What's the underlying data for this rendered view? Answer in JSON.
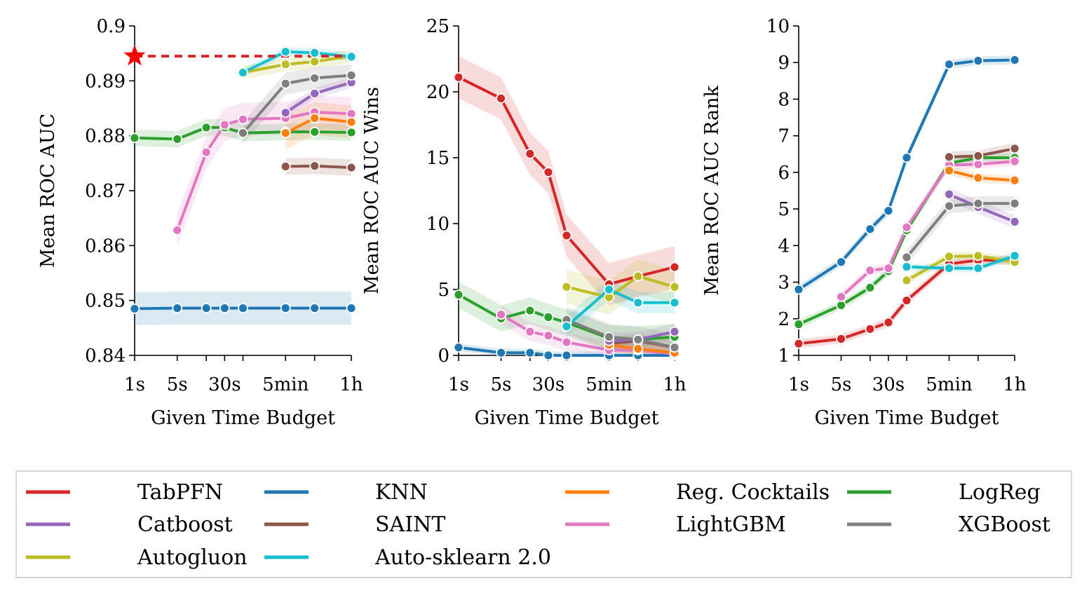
{
  "legend": {
    "entries": [
      {
        "label": "TabPFN",
        "color": "#d62728"
      },
      {
        "label": "KNN",
        "color": "#1f77b4"
      },
      {
        "label": "Reg. Cocktails",
        "color": "#ff7f0e"
      },
      {
        "label": "LogReg",
        "color": "#2ca02c"
      },
      {
        "label": "Catboost",
        "color": "#9467bd"
      },
      {
        "label": "SAINT",
        "color": "#8c564b"
      },
      {
        "label": "LightGBM",
        "color": "#e377c2"
      },
      {
        "label": "XGBoost",
        "color": "#7f7f7f"
      },
      {
        "label": "Autogluon",
        "color": "#bcbd22"
      },
      {
        "label": "Auto-sklearn 2.0",
        "color": "#17becf"
      }
    ]
  },
  "chart_data": [
    {
      "type": "line",
      "xlabel": "Given Time Budget",
      "ylabel": "Mean ROC AUC",
      "x_ticks": [
        "1s",
        "5s",
        "30s",
        "5min",
        "1h"
      ],
      "ylim": [
        0.84,
        0.9
      ],
      "y_ticks": [
        "0.84",
        "0.85",
        "0.86",
        "0.87",
        "0.88",
        "0.89",
        "0.9"
      ],
      "reference": {
        "series": "TabPFN",
        "x": "1s",
        "y": 0.8945,
        "marker": "star"
      },
      "series": [
        {
          "name": "KNN",
          "color": "#1f77b4",
          "band": 0.003,
          "points": [
            [
              "1s",
              0.8485
            ],
            [
              "5s",
              0.8486
            ],
            [
              "15s",
              0.8486
            ],
            [
              "30s",
              0.8486
            ],
            [
              "1min",
              0.8486
            ],
            [
              "5min",
              0.8486
            ],
            [
              "15min",
              0.8486
            ],
            [
              "1h",
              0.8486
            ]
          ]
        },
        {
          "name": "LogReg",
          "color": "#2ca02c",
          "band": 0.0015,
          "points": [
            [
              "1s",
              0.8796
            ],
            [
              "5s",
              0.8794
            ],
            [
              "15s",
              0.8815
            ],
            [
              "30s",
              0.8815
            ],
            [
              "1min",
              0.8805
            ],
            [
              "5min",
              0.8807
            ],
            [
              "15min",
              0.8807
            ],
            [
              "1h",
              0.8806
            ]
          ]
        },
        {
          "name": "LightGBM",
          "color": "#e377c2",
          "band": 0.003,
          "points": [
            [
              "5s",
              0.8628
            ],
            [
              "15s",
              0.877
            ],
            [
              "30s",
              0.882
            ],
            [
              "1min",
              0.883
            ],
            [
              "5min",
              0.8832
            ],
            [
              "15min",
              0.8843
            ],
            [
              "1h",
              0.884
            ]
          ]
        },
        {
          "name": "SAINT",
          "color": "#8c564b",
          "band": 0.0015,
          "points": [
            [
              "5min",
              0.8744
            ],
            [
              "15min",
              0.8745
            ],
            [
              "1h",
              0.8742
            ]
          ]
        },
        {
          "name": "Reg. Cocktails",
          "color": "#ff7f0e",
          "band": 0.003,
          "points": [
            [
              "5min",
              0.8805
            ],
            [
              "15min",
              0.8832
            ],
            [
              "1h",
              0.8825
            ]
          ]
        },
        {
          "name": "Catboost",
          "color": "#9467bd",
          "band": 0.001,
          "points": [
            [
              "5min",
              0.8842
            ],
            [
              "15min",
              0.8877
            ],
            [
              "1h",
              0.8897
            ]
          ]
        },
        {
          "name": "XGBoost",
          "color": "#7f7f7f",
          "band": 0.002,
          "points": [
            [
              "1min",
              0.8805
            ],
            [
              "5min",
              0.8895
            ],
            [
              "15min",
              0.8905
            ],
            [
              "1h",
              0.891
            ]
          ]
        },
        {
          "name": "Autogluon",
          "color": "#bcbd22",
          "band": 0.0012,
          "points": [
            [
              "1min",
              0.8915
            ],
            [
              "5min",
              0.893
            ],
            [
              "15min",
              0.8935
            ],
            [
              "1h",
              0.8945
            ]
          ]
        },
        {
          "name": "Auto-sklearn 2.0",
          "color": "#17becf",
          "band": 0.0008,
          "points": [
            [
              "1min",
              0.8915
            ],
            [
              "5min",
              0.8953
            ],
            [
              "15min",
              0.8951
            ],
            [
              "1h",
              0.8944
            ]
          ]
        }
      ]
    },
    {
      "type": "line",
      "xlabel": "Given Time Budget",
      "ylabel": "Mean ROC AUC Wins",
      "x_ticks": [
        "1s",
        "5s",
        "30s",
        "5min",
        "1h"
      ],
      "ylim": [
        0,
        25
      ],
      "y_ticks": [
        "0",
        "5",
        "10",
        "15",
        "20",
        "25"
      ],
      "series": [
        {
          "name": "TabPFN",
          "color": "#d62728",
          "band": 1.6,
          "points": [
            [
              "1s",
              21.1
            ],
            [
              "5s",
              19.5
            ],
            [
              "15s",
              15.3
            ],
            [
              "30s",
              13.9
            ],
            [
              "1min",
              9.1
            ],
            [
              "5min",
              5.4
            ],
            [
              "15min",
              6.0
            ],
            [
              "1h",
              6.7
            ]
          ]
        },
        {
          "name": "KNN",
          "color": "#1f77b4",
          "band": 0.3,
          "points": [
            [
              "1s",
              0.6
            ],
            [
              "5s",
              0.2
            ],
            [
              "15s",
              0.2
            ],
            [
              "30s",
              0.0
            ],
            [
              "1min",
              0.0
            ],
            [
              "5min",
              0.0
            ],
            [
              "15min",
              0.0
            ],
            [
              "1h",
              0.0
            ]
          ]
        },
        {
          "name": "LogReg",
          "color": "#2ca02c",
          "band": 1.0,
          "points": [
            [
              "1s",
              4.6
            ],
            [
              "5s",
              2.8
            ],
            [
              "15s",
              3.4
            ],
            [
              "30s",
              2.9
            ],
            [
              "1min",
              2.5
            ],
            [
              "5min",
              1.3
            ],
            [
              "15min",
              1.2
            ],
            [
              "1h",
              1.4
            ]
          ]
        },
        {
          "name": "LightGBM",
          "color": "#e377c2",
          "band": 0.7,
          "points": [
            [
              "5s",
              3.1
            ],
            [
              "15s",
              1.8
            ],
            [
              "30s",
              1.5
            ],
            [
              "1min",
              1.0
            ],
            [
              "5min",
              0.4
            ],
            [
              "15min",
              0.4
            ],
            [
              "1h",
              0.1
            ]
          ]
        },
        {
          "name": "SAINT",
          "color": "#8c564b",
          "band": 0.5,
          "points": [
            [
              "5min",
              0.9
            ],
            [
              "15min",
              1.1
            ],
            [
              "1h",
              0.6
            ]
          ]
        },
        {
          "name": "Reg. Cocktails",
          "color": "#ff7f0e",
          "band": 0.5,
          "points": [
            [
              "5min",
              0.8
            ],
            [
              "15min",
              0.5
            ],
            [
              "1h",
              0.2
            ]
          ]
        },
        {
          "name": "Catboost",
          "color": "#9467bd",
          "band": 0.6,
          "points": [
            [
              "5min",
              1.1
            ],
            [
              "15min",
              1.2
            ],
            [
              "1h",
              1.8
            ]
          ]
        },
        {
          "name": "XGBoost",
          "color": "#7f7f7f",
          "band": 1.0,
          "points": [
            [
              "1min",
              2.7
            ],
            [
              "5min",
              1.4
            ],
            [
              "15min",
              1.2
            ],
            [
              "1h",
              0.6
            ]
          ]
        },
        {
          "name": "Autogluon",
          "color": "#bcbd22",
          "band": 1.3,
          "points": [
            [
              "1min",
              5.2
            ],
            [
              "5min",
              4.4
            ],
            [
              "15min",
              6.0
            ],
            [
              "1h",
              5.2
            ]
          ]
        },
        {
          "name": "Auto-sklearn 2.0",
          "color": "#17becf",
          "band": 0.8,
          "points": [
            [
              "1min",
              2.2
            ],
            [
              "5min",
              5.0
            ],
            [
              "15min",
              4.0
            ],
            [
              "1h",
              4.0
            ]
          ]
        }
      ]
    },
    {
      "type": "line",
      "xlabel": "Given Time Budget",
      "ylabel": "Mean ROC AUC Rank",
      "x_ticks": [
        "1s",
        "5s",
        "30s",
        "5min",
        "1h"
      ],
      "ylim": [
        1,
        10
      ],
      "y_ticks": [
        "1",
        "2",
        "3",
        "4",
        "5",
        "6",
        "7",
        "8",
        "9",
        "10"
      ],
      "series": [
        {
          "name": "TabPFN",
          "color": "#d62728",
          "band": 0.12,
          "points": [
            [
              "1s",
              1.32
            ],
            [
              "5s",
              1.45
            ],
            [
              "15s",
              1.72
            ],
            [
              "30s",
              1.9
            ],
            [
              "1min",
              2.5
            ],
            [
              "5min",
              3.5
            ],
            [
              "15min",
              3.6
            ],
            [
              "1h",
              3.6
            ]
          ]
        },
        {
          "name": "KNN",
          "color": "#1f77b4",
          "band": 0.12,
          "points": [
            [
              "1s",
              2.8
            ],
            [
              "5s",
              3.55
            ],
            [
              "15s",
              4.45
            ],
            [
              "30s",
              4.95
            ],
            [
              "1min",
              6.4
            ],
            [
              "5min",
              8.95
            ],
            [
              "15min",
              9.05
            ],
            [
              "1h",
              9.07
            ]
          ]
        },
        {
          "name": "LogReg",
          "color": "#2ca02c",
          "band": 0.12,
          "points": [
            [
              "1s",
              1.85
            ],
            [
              "5s",
              2.37
            ],
            [
              "15s",
              2.85
            ],
            [
              "30s",
              3.3
            ],
            [
              "1min",
              4.42
            ],
            [
              "5min",
              6.25
            ],
            [
              "15min",
              6.4
            ],
            [
              "1h",
              6.4
            ]
          ]
        },
        {
          "name": "LightGBM",
          "color": "#e377c2",
          "band": 0.12,
          "points": [
            [
              "5s",
              2.6
            ],
            [
              "15s",
              3.32
            ],
            [
              "30s",
              3.38
            ],
            [
              "1min",
              4.5
            ],
            [
              "5min",
              6.2
            ],
            [
              "15min",
              6.22
            ],
            [
              "1h",
              6.3
            ]
          ]
        },
        {
          "name": "SAINT",
          "color": "#8c564b",
          "band": 0.15,
          "points": [
            [
              "5min",
              6.42
            ],
            [
              "15min",
              6.45
            ],
            [
              "1h",
              6.65
            ]
          ]
        },
        {
          "name": "Reg. Cocktails",
          "color": "#ff7f0e",
          "band": 0.12,
          "points": [
            [
              "5min",
              6.05
            ],
            [
              "15min",
              5.85
            ],
            [
              "1h",
              5.78
            ]
          ]
        },
        {
          "name": "Catboost",
          "color": "#9467bd",
          "band": 0.18,
          "points": [
            [
              "5min",
              5.4
            ],
            [
              "15min",
              5.05
            ],
            [
              "1h",
              4.65
            ]
          ]
        },
        {
          "name": "XGBoost",
          "color": "#7f7f7f",
          "band": 0.2,
          "points": [
            [
              "1min",
              3.68
            ],
            [
              "5min",
              5.08
            ],
            [
              "15min",
              5.15
            ],
            [
              "1h",
              5.15
            ]
          ]
        },
        {
          "name": "Autogluon",
          "color": "#bcbd22",
          "band": 0.12,
          "points": [
            [
              "1min",
              3.05
            ],
            [
              "5min",
              3.7
            ],
            [
              "15min",
              3.72
            ],
            [
              "1h",
              3.55
            ]
          ]
        },
        {
          "name": "Auto-sklearn 2.0",
          "color": "#17becf",
          "band": 0.1,
          "points": [
            [
              "1min",
              3.42
            ],
            [
              "5min",
              3.38
            ],
            [
              "15min",
              3.38
            ],
            [
              "1h",
              3.72
            ]
          ]
        }
      ]
    }
  ]
}
